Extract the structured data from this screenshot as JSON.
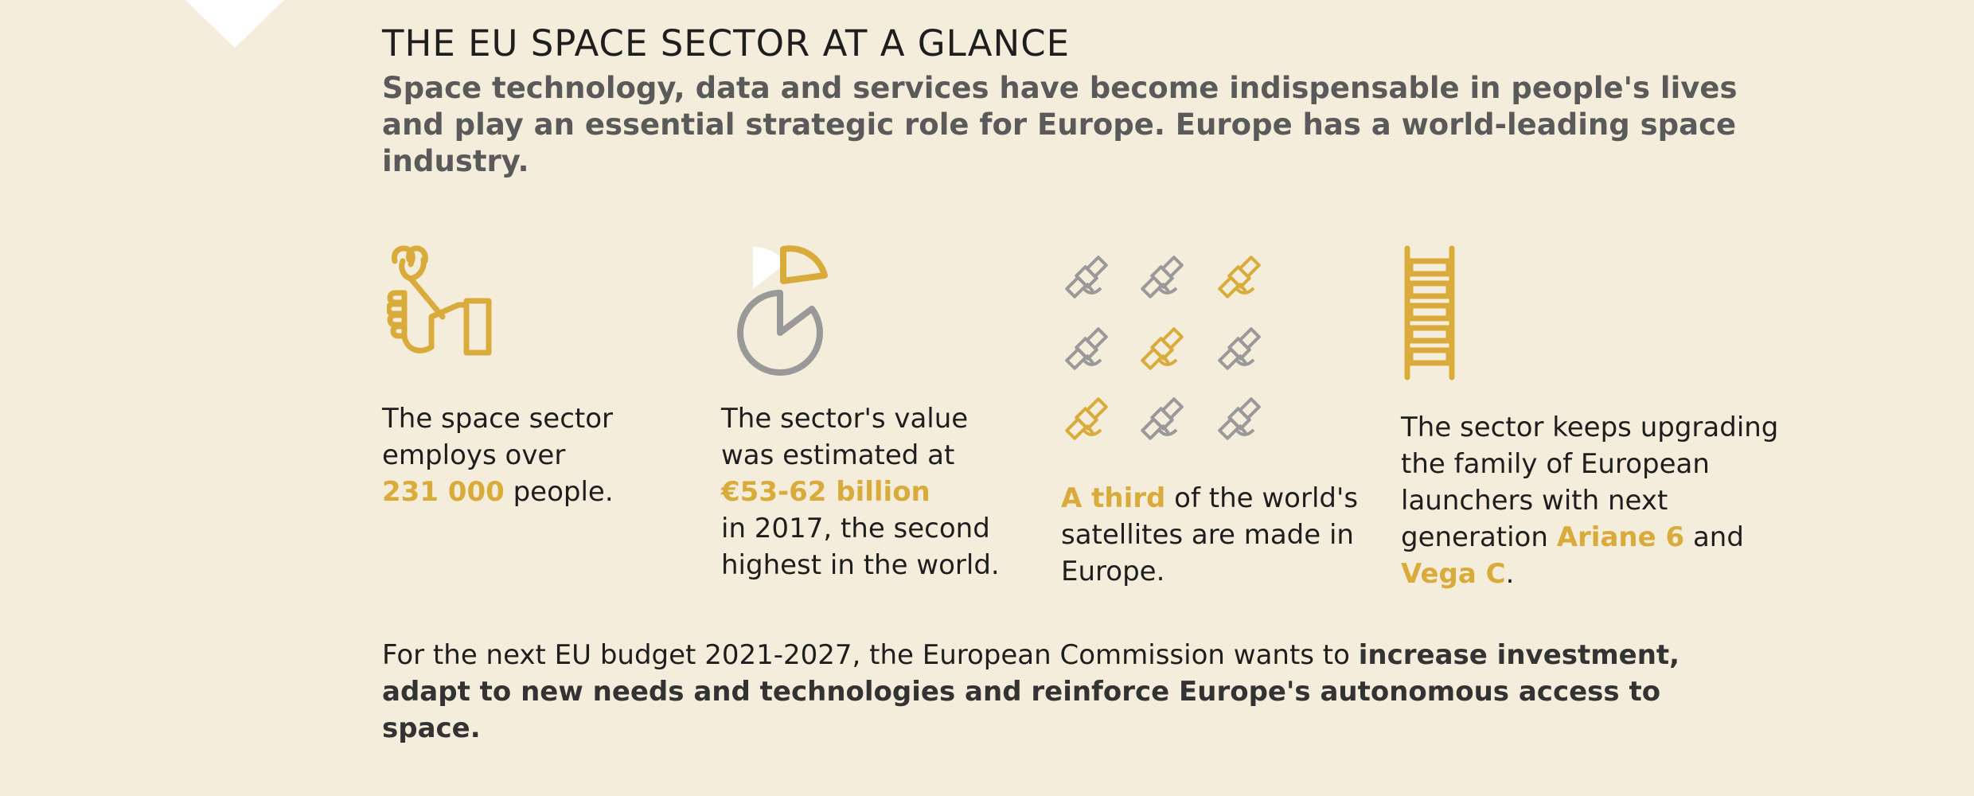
{
  "header": {
    "title": "THE EU SPACE SECTOR AT A GLANCE",
    "subtitle": "Space technology, data and services have become indispensable in people's lives and play an essential strategic role for Europe. Europe has a world-leading space industry."
  },
  "stats": [
    {
      "icon": "wrench-hand-icon",
      "line1": "The space sector",
      "line2": "employs over",
      "highlight": "231 000",
      "after": " people."
    },
    {
      "icon": "pie-chart-icon",
      "line1": "The sector's value",
      "line2": "was estimated at",
      "highlight": "€53-62 billion",
      "line4": "in 2017, the second",
      "line5": "highest in the world."
    },
    {
      "icon": "satellites-icon",
      "highlight": "A third",
      "after": " of the world's",
      "line2": "satellites are made in",
      "line3": "Europe."
    },
    {
      "icon": "ladder-icon",
      "line1": "The sector keeps upgrading",
      "line2": "the family of European",
      "line3": "launchers with next",
      "line4a": "generation ",
      "highlight1": "Ariane 6",
      "and": " and",
      "highlight2": "Vega C",
      "period": "."
    }
  ],
  "footer": {
    "plain": "For the next EU budget 2021-2027, the European Commission wants to ",
    "bold": "increase investment, adapt to new needs and technologies and reinforce Europe's autonomous access to space."
  },
  "colors": {
    "background": "#f5eddb",
    "accent": "#d9ab3a",
    "grey": "#999999"
  }
}
